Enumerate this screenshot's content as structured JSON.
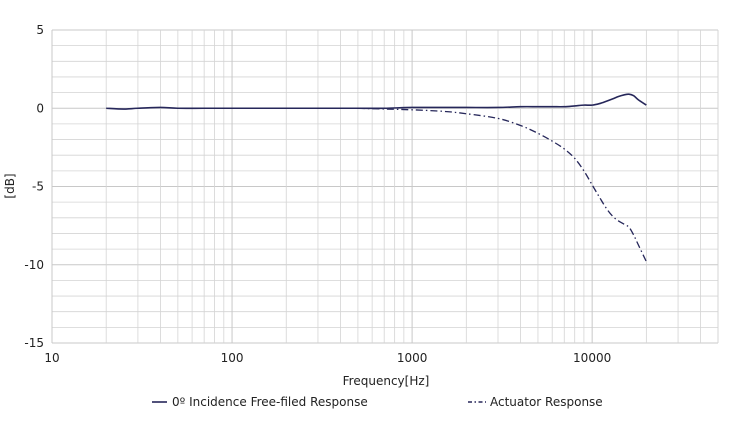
{
  "chart_data": {
    "type": "line",
    "title": "",
    "xlabel": "Frequency[Hz]",
    "ylabel": "[dB]",
    "x_scale": "log",
    "xlim": [
      10,
      50000
    ],
    "ylim": [
      -15,
      5
    ],
    "x_ticks": [
      10,
      100,
      1000,
      10000
    ],
    "x_tick_labels": [
      "10",
      "100",
      "1000",
      "10000"
    ],
    "y_ticks": [
      5,
      0,
      -5,
      -10,
      -15
    ],
    "y_tick_labels": [
      "5",
      "0",
      "-5",
      "-10",
      "-15"
    ],
    "grid": true,
    "legend_position": "bottom",
    "colors": {
      "series": "#26275a",
      "grid": "#d4d4d4",
      "axis": "#c8c8c8"
    },
    "series": [
      {
        "name": "0º Incidence Free-filed Response",
        "line_style": "solid",
        "x": [
          20,
          25,
          30,
          40,
          50,
          70,
          100,
          150,
          200,
          300,
          400,
          500,
          700,
          1000,
          1500,
          2000,
          3000,
          4000,
          5000,
          6000,
          7000,
          8000,
          9000,
          10000,
          11000,
          12000,
          13000,
          14000,
          15000,
          16000,
          17000,
          18000,
          20000
        ],
        "y": [
          0.0,
          -0.05,
          0.0,
          0.05,
          0.0,
          0.0,
          0.0,
          0.0,
          0.0,
          0.0,
          0.0,
          0.0,
          0.0,
          0.05,
          0.05,
          0.05,
          0.05,
          0.1,
          0.1,
          0.1,
          0.1,
          0.15,
          0.2,
          0.2,
          0.3,
          0.45,
          0.6,
          0.75,
          0.85,
          0.9,
          0.8,
          0.55,
          0.2
        ]
      },
      {
        "name": "Actuator Response",
        "line_style": "dash-dot",
        "x": [
          500,
          700,
          1000,
          1500,
          2000,
          3000,
          4000,
          5000,
          6000,
          7000,
          8000,
          9000,
          10000,
          11000,
          12000,
          13000,
          14000,
          15000,
          16000,
          17000,
          18000,
          20000
        ],
        "y": [
          0.0,
          -0.05,
          -0.1,
          -0.2,
          -0.35,
          -0.65,
          -1.1,
          -1.6,
          -2.1,
          -2.6,
          -3.2,
          -4.0,
          -4.9,
          -5.7,
          -6.4,
          -6.9,
          -7.2,
          -7.4,
          -7.6,
          -8.1,
          -8.7,
          -9.8
        ]
      }
    ]
  }
}
